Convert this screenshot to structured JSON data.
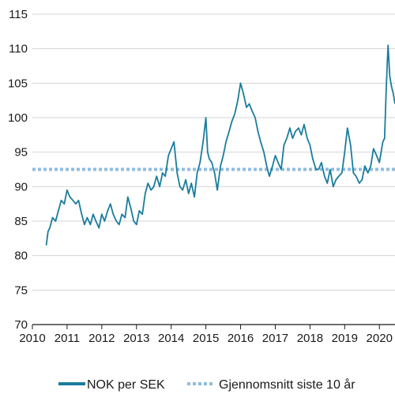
{
  "chart_data": {
    "type": "line",
    "title": "",
    "xlabel": "",
    "ylabel": "",
    "xlim": [
      2010.0,
      2020.45
    ],
    "ylim": [
      70,
      115
    ],
    "x_ticks": [
      2010,
      2011,
      2012,
      2013,
      2014,
      2015,
      2016,
      2017,
      2018,
      2019,
      2020
    ],
    "x_tick_labels": [
      "2010",
      "2011",
      "2012",
      "2013",
      "2014",
      "2015",
      "2016",
      "2017",
      "2018",
      "2019",
      "2020"
    ],
    "y_ticks": [
      70,
      75,
      80,
      85,
      90,
      95,
      100,
      105,
      110,
      115
    ],
    "y_tick_labels": [
      "70",
      "75",
      "80",
      "85",
      "90",
      "95",
      "100",
      "105",
      "110",
      "115"
    ],
    "grid": "horizontal",
    "legend_position": "bottom",
    "colors": {
      "series": "#1a7d9c",
      "average": "#8fbde0",
      "axis": "#1a1a1a",
      "grid": "#d4d4d4"
    },
    "series": [
      {
        "name": "NOK per SEK",
        "style": "solid",
        "x": [
          2010.4,
          2010.45,
          2010.5,
          2010.58,
          2010.67,
          2010.75,
          2010.83,
          2010.92,
          2011.0,
          2011.08,
          2011.17,
          2011.25,
          2011.33,
          2011.42,
          2011.5,
          2011.58,
          2011.67,
          2011.75,
          2011.83,
          2011.92,
          2012.0,
          2012.08,
          2012.17,
          2012.25,
          2012.33,
          2012.42,
          2012.5,
          2012.58,
          2012.67,
          2012.75,
          2012.83,
          2012.92,
          2013.0,
          2013.08,
          2013.17,
          2013.25,
          2013.33,
          2013.42,
          2013.5,
          2013.58,
          2013.67,
          2013.75,
          2013.83,
          2013.92,
          2014.0,
          2014.08,
          2014.17,
          2014.25,
          2014.33,
          2014.42,
          2014.5,
          2014.58,
          2014.67,
          2014.75,
          2014.83,
          2014.92,
          2015.0,
          2015.05,
          2015.1,
          2015.17,
          2015.25,
          2015.33,
          2015.42,
          2015.5,
          2015.58,
          2015.67,
          2015.75,
          2015.83,
          2015.92,
          2016.0,
          2016.08,
          2016.17,
          2016.25,
          2016.33,
          2016.42,
          2016.5,
          2016.58,
          2016.67,
          2016.75,
          2016.83,
          2016.92,
          2017.0,
          2017.08,
          2017.17,
          2017.25,
          2017.33,
          2017.42,
          2017.5,
          2017.58,
          2017.67,
          2017.75,
          2017.83,
          2017.92,
          2018.0,
          2018.08,
          2018.17,
          2018.25,
          2018.33,
          2018.42,
          2018.5,
          2018.58,
          2018.67,
          2018.75,
          2018.83,
          2018.92,
          2019.0,
          2019.08,
          2019.17,
          2019.25,
          2019.33,
          2019.42,
          2019.5,
          2019.58,
          2019.67,
          2019.75,
          2019.83,
          2019.92,
          2020.0,
          2020.05,
          2020.1,
          2020.15,
          2020.2,
          2020.25,
          2020.3,
          2020.35,
          2020.4,
          2020.45
        ],
        "values": [
          81.5,
          83.5,
          84.0,
          85.5,
          85.0,
          86.5,
          88.0,
          87.5,
          89.5,
          88.5,
          88.0,
          87.5,
          88.0,
          86.0,
          84.5,
          85.5,
          84.5,
          86.0,
          85.0,
          84.0,
          86.0,
          85.0,
          86.5,
          87.5,
          86.0,
          85.0,
          84.5,
          86.0,
          85.5,
          88.5,
          87.0,
          85.0,
          84.5,
          86.5,
          86.0,
          89.0,
          90.5,
          89.5,
          90.0,
          91.5,
          90.0,
          92.0,
          91.5,
          94.5,
          95.5,
          96.5,
          92.0,
          90.0,
          89.5,
          91.0,
          89.0,
          90.5,
          88.5,
          92.0,
          93.5,
          96.5,
          100.0,
          95.0,
          94.0,
          93.5,
          92.0,
          89.5,
          93.0,
          94.5,
          96.5,
          98.0,
          99.5,
          100.5,
          102.5,
          105.0,
          103.5,
          101.5,
          102.0,
          101.0,
          100.0,
          98.0,
          96.5,
          95.0,
          93.0,
          91.5,
          93.0,
          94.5,
          93.5,
          92.5,
          96.0,
          97.0,
          98.5,
          97.0,
          98.0,
          98.5,
          97.5,
          99.0,
          97.0,
          96.0,
          94.0,
          92.5,
          92.5,
          93.5,
          91.5,
          90.5,
          92.5,
          90.0,
          91.0,
          91.5,
          92.0,
          95.0,
          98.5,
          96.0,
          92.0,
          91.5,
          90.5,
          91.0,
          93.0,
          92.0,
          93.0,
          95.5,
          94.5,
          93.5,
          95.0,
          96.5,
          97.0,
          104.5,
          110.5,
          106.0,
          104.5,
          103.5,
          102.0
        ]
      },
      {
        "name": "Gjennomsnitt siste 10 år",
        "style": "dotted",
        "x": [
          2010.0,
          2020.45
        ],
        "values": [
          92.5,
          92.5
        ]
      }
    ]
  }
}
